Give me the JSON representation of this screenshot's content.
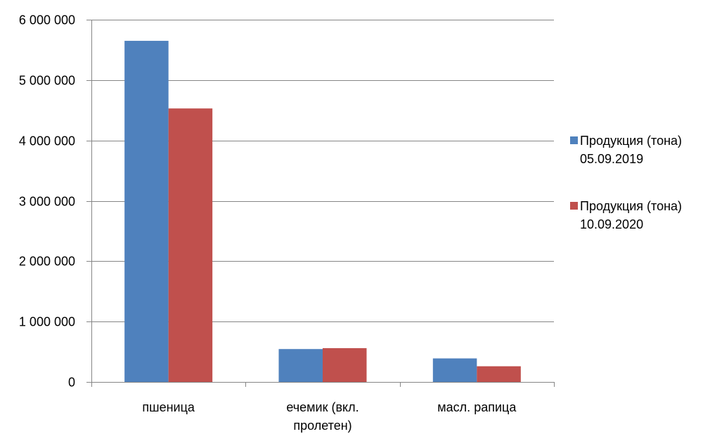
{
  "chart_data": {
    "type": "bar",
    "categories": [
      [
        "пшеница"
      ],
      [
        "ечемик (вкл.",
        "пролетен)"
      ],
      [
        "масл. рапица"
      ]
    ],
    "series": [
      {
        "name": [
          "Продукция (тона)",
          "05.09.2019"
        ],
        "color": "#4F81BD",
        "values": [
          5650000,
          545000,
          390000
        ]
      },
      {
        "name": [
          "Продукция (тона)",
          "10.09.2020"
        ],
        "color": "#C0504D",
        "values": [
          4530000,
          560000,
          260000
        ]
      }
    ],
    "yticks": [
      0,
      1000000,
      2000000,
      3000000,
      4000000,
      5000000,
      6000000
    ],
    "ytick_labels": [
      "0",
      "1 000 000",
      "2 000 000",
      "3 000 000",
      "4 000 000",
      "5 000 000",
      "6 000 000"
    ],
    "ylim": [
      0,
      6000000
    ],
    "grid": true,
    "legend_position": "right",
    "title": "",
    "xlabel": "",
    "ylabel": ""
  }
}
